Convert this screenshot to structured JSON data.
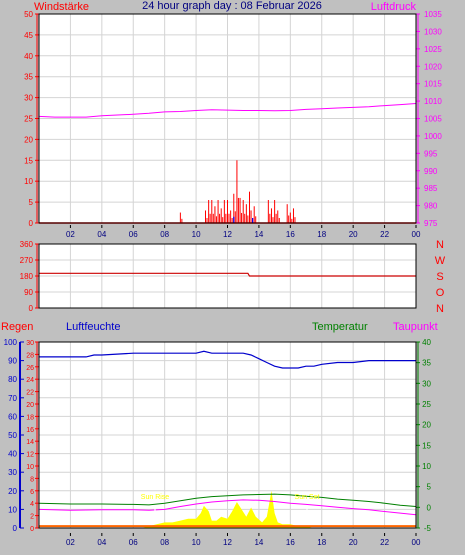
{
  "title": "24 hour graph day : 08 Februar 2026",
  "colors": {
    "background": "#c0c0c0",
    "plot_bg": "#ffffff",
    "grid": "#d4d4d4",
    "axis_frame": "#000000",
    "wind": "#ff0000",
    "wind_max": "#0000ff",
    "pressure": "#ff00ff",
    "direction": "#cc0000",
    "humidity": "#0000cc",
    "temperature": "#008000",
    "dewpoint": "#ff00ff",
    "rain": "#ff6600",
    "solar": "#ffff00",
    "sun_marker": "#ffffff",
    "left_axis_wind": "#ff0000",
    "left_axis_humidity": "#0000cc",
    "left_axis_rain": "#ff0000",
    "right_axis_temp": "#008000",
    "x_labels": "#000080"
  },
  "x_tick_labels": [
    "02",
    "04",
    "06",
    "08",
    "10",
    "12",
    "14",
    "16",
    "18",
    "20",
    "22",
    "00"
  ],
  "chart_data": [
    {
      "type": "line",
      "panel": "wind-pressure",
      "title": "24 hour graph day : 08 Februar 2026",
      "left_label": "Windstärke",
      "right_label": "Luftdruck",
      "xlabel": "",
      "x_range_hours": [
        0,
        24
      ],
      "left_ylim": [
        0,
        50
      ],
      "left_ticks": [
        "0",
        "5",
        "10",
        "15",
        "20",
        "25",
        "30",
        "35",
        "40",
        "45",
        "50"
      ],
      "right_ylim": [
        975,
        1035
      ],
      "right_ticks": [
        "975",
        "980",
        "985",
        "990",
        "995",
        "1000",
        "1005",
        "1010",
        "1015",
        "1020",
        "1025",
        "1030",
        "1035"
      ],
      "grid": true,
      "series": [
        {
          "name": "Luftdruck",
          "axis": "right",
          "x": [
            0,
            1,
            2,
            3,
            4,
            5,
            6,
            7,
            8,
            9,
            10,
            11,
            12,
            13,
            14,
            15,
            16,
            17,
            18,
            19,
            20,
            21,
            22,
            23,
            24
          ],
          "values": [
            1005.6,
            1005.4,
            1005.4,
            1005.4,
            1005.8,
            1006.0,
            1006.2,
            1006.5,
            1006.9,
            1007.0,
            1007.3,
            1007.5,
            1007.4,
            1007.3,
            1007.3,
            1007.2,
            1007.3,
            1007.6,
            1007.8,
            1008.0,
            1008.2,
            1008.4,
            1008.7,
            1009.0,
            1009.3
          ]
        },
        {
          "name": "Windstärke",
          "axis": "left",
          "style": "spikes",
          "x": [
            9.0,
            10.6,
            10.8,
            11.0,
            11.2,
            11.4,
            11.6,
            11.8,
            12.0,
            12.2,
            12.4,
            12.6,
            12.8,
            13.0,
            13.2,
            13.4,
            13.5,
            13.7,
            14.6,
            14.8,
            15.0,
            15.2,
            15.8,
            16.0,
            16.2
          ],
          "values": [
            2.5,
            3.0,
            5.5,
            5.5,
            4.0,
            5.5,
            3.5,
            5.5,
            5.5,
            3.0,
            7.0,
            15.0,
            6.0,
            5.5,
            4.5,
            7.5,
            3.0,
            4.0,
            5.5,
            3.5,
            5.5,
            3.0,
            4.5,
            2.5,
            3.5
          ]
        }
      ]
    },
    {
      "type": "line",
      "panel": "wind-direction",
      "right_label_letters": [
        "N",
        "W",
        "S",
        "O",
        "N"
      ],
      "xlabel": "",
      "x_range_hours": [
        0,
        24
      ],
      "ylim": [
        0,
        360
      ],
      "y_ticks": [
        "0",
        "90",
        "180",
        "270",
        "360"
      ],
      "grid": true,
      "series": [
        {
          "name": "Windrichtung",
          "x": [
            0,
            13.3,
            13.4,
            24
          ],
          "values": [
            195,
            195,
            180,
            180
          ]
        }
      ]
    },
    {
      "type": "line",
      "panel": "humidity-temperature",
      "labels": [
        "Regen",
        "Luftfeuchte",
        "Temperatur",
        "Taupunkt"
      ],
      "xlabel": "",
      "x_range_hours": [
        0,
        24
      ],
      "left_ylim": [
        0,
        100
      ],
      "left_ticks_humidity": [
        "0",
        "10",
        "20",
        "30",
        "40",
        "50",
        "60",
        "70",
        "80",
        "90",
        "100"
      ],
      "left_rain_ylim": [
        0,
        30
      ],
      "left_ticks_rain": [
        "0",
        "2",
        "4",
        "6",
        "8",
        "10",
        "12",
        "14",
        "16",
        "18",
        "20",
        "22",
        "24",
        "26",
        "28",
        "30"
      ],
      "right_ylim": [
        -5,
        40
      ],
      "right_ticks": [
        "-5",
        "0",
        "5",
        "10",
        "15",
        "20",
        "25",
        "30",
        "35",
        "40"
      ],
      "annotations": [
        "Sun Rise",
        "Sun Set"
      ],
      "grid": true,
      "series": [
        {
          "name": "Luftfeuchte",
          "axis": "left",
          "x": [
            0,
            3,
            3.5,
            4,
            6,
            8,
            10,
            10.5,
            11,
            12,
            13,
            13.5,
            14,
            14.5,
            15,
            15.5,
            16,
            16.5,
            17,
            17.5,
            18,
            19,
            20,
            21,
            22,
            23,
            24
          ],
          "values": [
            92,
            92,
            93,
            93,
            94,
            94,
            94,
            95,
            94,
            94,
            94,
            93,
            91,
            89,
            87,
            86,
            86,
            86,
            87,
            87,
            88,
            89,
            89,
            90,
            90,
            90,
            90
          ]
        },
        {
          "name": "Temperatur",
          "axis": "right",
          "x": [
            0,
            2,
            4,
            6,
            7,
            8,
            9,
            10,
            11,
            12,
            13,
            14,
            15,
            16,
            17,
            18,
            19,
            20,
            21,
            22,
            23,
            24
          ],
          "values": [
            1.0,
            0.8,
            0.8,
            0.7,
            0.6,
            1.0,
            1.6,
            2.2,
            2.6,
            2.8,
            3.0,
            3.1,
            3.2,
            3.0,
            2.7,
            2.4,
            2.0,
            1.7,
            1.4,
            1.0,
            0.5,
            0.2
          ]
        },
        {
          "name": "Taupunkt",
          "axis": "right",
          "x": [
            0,
            2,
            4,
            6,
            7,
            8,
            9,
            10,
            11,
            12,
            13,
            14,
            15,
            16,
            17,
            18,
            19,
            20,
            21,
            22,
            23,
            24
          ],
          "values": [
            -0.5,
            -0.7,
            -0.6,
            -0.6,
            -0.7,
            -0.5,
            0.2,
            0.8,
            1.3,
            1.6,
            1.8,
            1.7,
            1.4,
            1.0,
            0.7,
            0.4,
            0.0,
            -0.3,
            -0.6,
            -1.0,
            -1.4,
            -1.8
          ]
        },
        {
          "name": "Solar",
          "axis": "left",
          "style": "filled-area",
          "x": [
            6.5,
            7,
            7.5,
            8,
            8.5,
            9,
            9.5,
            10,
            10.3,
            10.5,
            10.8,
            11,
            11.3,
            11.6,
            12,
            12.3,
            12.6,
            12.9,
            13.2,
            13.5,
            13.8,
            14.2,
            14.5,
            14.8,
            15.0,
            15.2,
            15.5,
            16,
            16.5,
            17,
            17.5
          ],
          "values": [
            0,
            1,
            2,
            3,
            3,
            4,
            5,
            5,
            8,
            12,
            9,
            4,
            4,
            6,
            5,
            9,
            14,
            10,
            6,
            11,
            6,
            3,
            6,
            20,
            8,
            3,
            2,
            2,
            1,
            1,
            0
          ]
        },
        {
          "name": "Regen",
          "axis": "left",
          "x": [
            0,
            24
          ],
          "values": [
            1,
            1
          ]
        }
      ]
    }
  ]
}
